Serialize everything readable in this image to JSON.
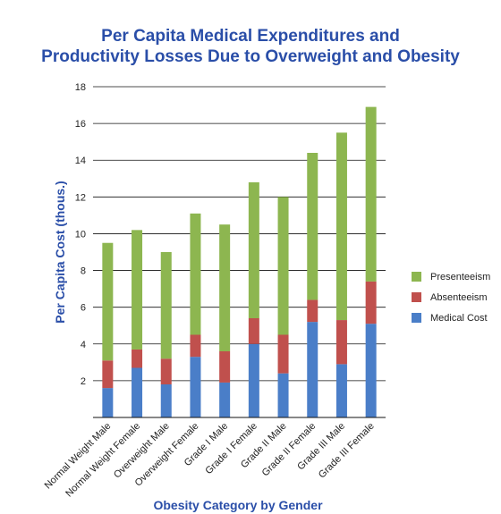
{
  "chart_data": {
    "type": "bar",
    "stacked": true,
    "title_lines": [
      "Per Capita Medical Expenditures and",
      "Productivity Losses Due to Overweight and Obesity"
    ],
    "xlabel": "Obesity Category by Gender",
    "ylabel": "Per Capita Cost (thous.)",
    "ylim": [
      0,
      18
    ],
    "yticks": [
      2,
      4,
      6,
      8,
      10,
      12,
      14,
      16,
      18
    ],
    "grid": true,
    "legend_position": "right",
    "categories": [
      "Normal Weight Male",
      "Normal Weight Female",
      "Overweight Male",
      "Overweight Female",
      "Grade I Male",
      "Grade I Female",
      "Grade II Male",
      "Grade II Female",
      "Grade III Male",
      "Grade III Female"
    ],
    "series": [
      {
        "name": "Medical Cost",
        "color": "#4a7ec8",
        "values": [
          1.6,
          2.7,
          1.8,
          3.3,
          1.9,
          4.0,
          2.4,
          5.2,
          2.9,
          5.1
        ]
      },
      {
        "name": "Absenteeism",
        "color": "#c0504d",
        "values": [
          1.5,
          1.0,
          1.4,
          1.2,
          1.7,
          1.4,
          2.1,
          1.2,
          2.4,
          2.3
        ]
      },
      {
        "name": "Presenteeism",
        "color": "#8db650",
        "values": [
          6.4,
          6.5,
          5.8,
          6.6,
          6.9,
          7.4,
          7.5,
          8.0,
          10.2,
          9.5
        ]
      }
    ],
    "legend_order": [
      "Presenteeism",
      "Absenteeism",
      "Medical Cost"
    ],
    "colors": {
      "title": "#2a4ea8",
      "axis_label": "#2a4ea8",
      "grid": "#111111"
    }
  }
}
